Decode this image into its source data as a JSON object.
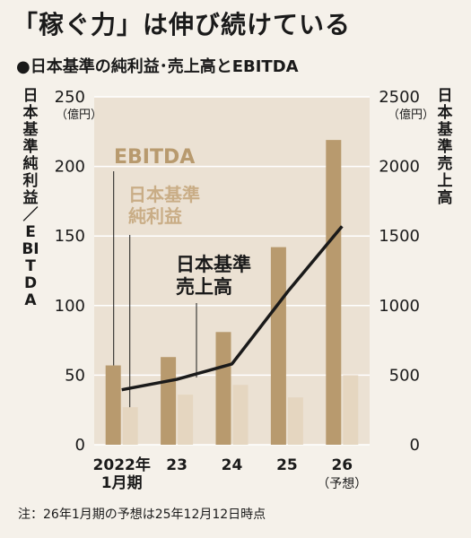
{
  "title": "「稼ぐ力」は伸び続けている",
  "subtitle": "●日本基準の純利益･売上高とEBITDA",
  "footnote": "注：26年1月期の予想は25年12月12日時点",
  "chart_data": {
    "type": "bar",
    "categories": [
      "2022年\n1月期",
      "23",
      "24",
      "25",
      "26\n（予想）"
    ],
    "series": [
      {
        "name": "EBITDA",
        "axis": "left",
        "type": "bar",
        "color": "#b89a6e",
        "values": [
          57,
          63,
          81,
          142,
          219
        ]
      },
      {
        "name": "日本基準\n純利益",
        "axis": "left",
        "type": "bar",
        "color": "#e5d6c0",
        "values": [
          27,
          36,
          43,
          34,
          50
        ]
      },
      {
        "name": "日本基準\n売上高",
        "axis": "right",
        "type": "line",
        "color": "#1a1a1a",
        "values": [
          395,
          470,
          580,
          1110,
          1570
        ]
      }
    ],
    "ylabel": "日本基準純利益／EBITDA",
    "ylabel_right": "日本基準売上高",
    "yunit": "（億円）",
    "yunit_right": "（億円）",
    "ylim": [
      0,
      250
    ],
    "ylim_right": [
      0,
      2500
    ],
    "yticks": [
      0,
      50,
      100,
      150,
      200,
      250
    ],
    "yticks_right": [
      0,
      500,
      1000,
      1500,
      2000,
      2500
    ],
    "grid": true,
    "legend": "inline"
  },
  "colors": {
    "background": "#f5f1ea",
    "plot_area": "#ebe1d3",
    "gridline": "#ffffff"
  }
}
